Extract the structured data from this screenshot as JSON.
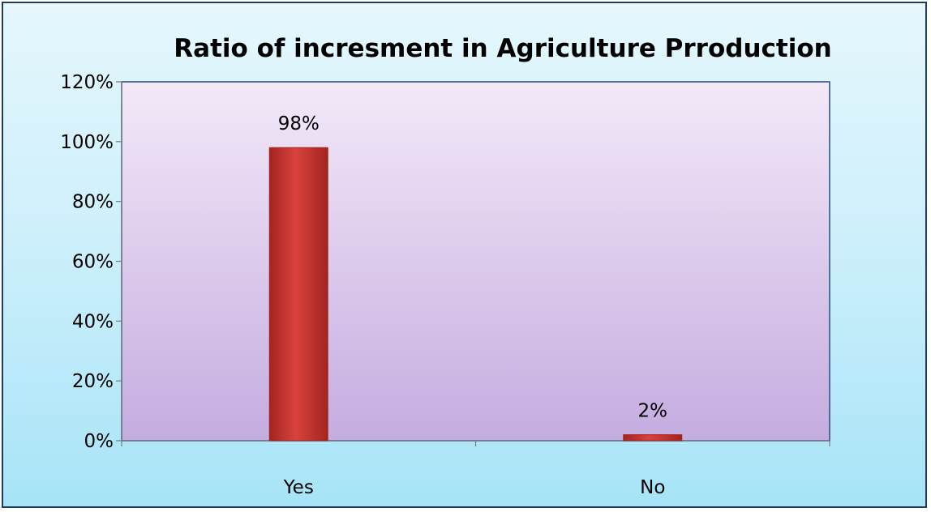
{
  "chart_data": {
    "type": "bar",
    "title": "Ratio of incresment in Agriculture Prroduction",
    "categories": [
      "Yes",
      "No"
    ],
    "values": [
      98,
      2
    ],
    "data_labels": [
      "98%",
      "2%"
    ],
    "xlabel": "",
    "ylabel": "",
    "ylim": [
      0,
      120
    ],
    "y_ticks": [
      0,
      20,
      40,
      60,
      80,
      100,
      120
    ],
    "y_tick_labels": [
      "0%",
      "20%",
      "40%",
      "60%",
      "80%",
      "100%",
      "120%"
    ],
    "grid": false,
    "legend": "none",
    "colors": {
      "bar": "#d9423c",
      "bar_dark": "#a32420",
      "plot_top": "#f3e9f8",
      "plot_bottom": "#c5ace0",
      "plot_border": "#2b4e7d",
      "frame_border": "#1f3d5a"
    }
  }
}
